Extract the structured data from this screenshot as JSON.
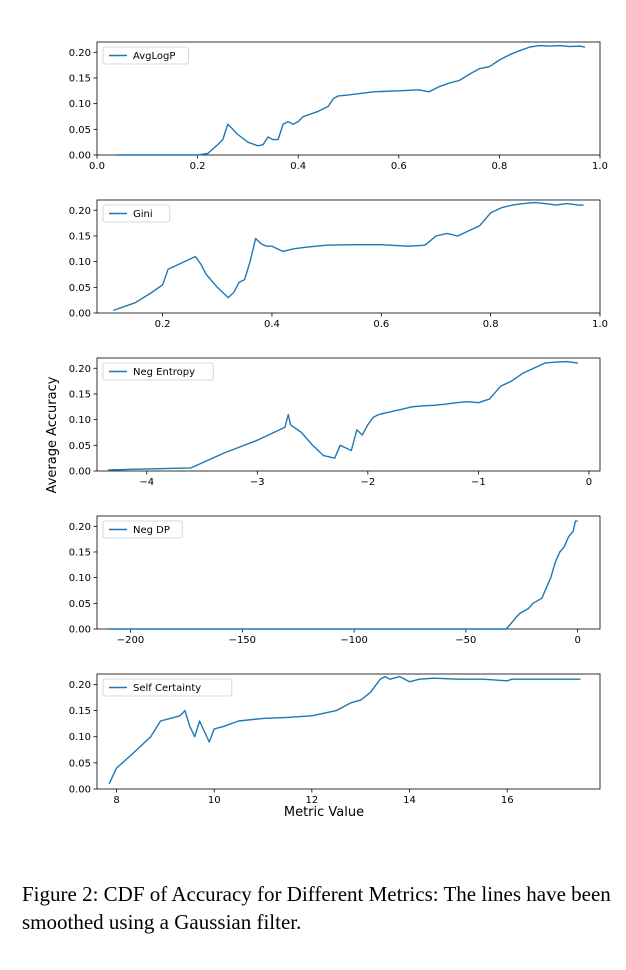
{
  "caption": "Figure 2: CDF of Accuracy for Different Metrics: The lines have been smoothed using a Gaussian filter.",
  "ylabel": "Average Accuracy",
  "xlabel": "Metric Value",
  "line_color": "#1f77b4",
  "chart_data": [
    {
      "type": "line",
      "series": [
        {
          "name": "AvgLogP",
          "x": [
            0.04,
            0.2,
            0.22,
            0.24,
            0.25,
            0.26,
            0.27,
            0.28,
            0.3,
            0.32,
            0.33,
            0.34,
            0.35,
            0.36,
            0.37,
            0.38,
            0.39,
            0.4,
            0.41,
            0.42,
            0.44,
            0.46,
            0.47,
            0.48,
            0.5,
            0.55,
            0.6,
            0.64,
            0.66,
            0.68,
            0.7,
            0.72,
            0.74,
            0.76,
            0.78,
            0.8,
            0.82,
            0.84,
            0.86,
            0.88,
            0.9,
            0.92,
            0.94,
            0.96,
            0.97
          ],
          "y": [
            0.0,
            0.0,
            0.003,
            0.02,
            0.03,
            0.06,
            0.05,
            0.04,
            0.025,
            0.018,
            0.02,
            0.035,
            0.03,
            0.03,
            0.06,
            0.065,
            0.06,
            0.065,
            0.075,
            0.078,
            0.085,
            0.095,
            0.11,
            0.115,
            0.117,
            0.123,
            0.125,
            0.127,
            0.123,
            0.133,
            0.14,
            0.145,
            0.157,
            0.168,
            0.172,
            0.185,
            0.195,
            0.203,
            0.21,
            0.213,
            0.212,
            0.213,
            0.211,
            0.212,
            0.21
          ]
        }
      ],
      "xlim": [
        0.0,
        1.0
      ],
      "ylim": [
        0.0,
        0.22
      ],
      "xticks": [
        0.0,
        0.2,
        0.4,
        0.6,
        0.8,
        1.0
      ],
      "xtick_labels": [
        "0.0",
        "0.2",
        "0.4",
        "0.6",
        "0.8",
        "1.0"
      ],
      "yticks": [
        0.0,
        0.05,
        0.1,
        0.15,
        0.2
      ],
      "ytick_labels": [
        "0.00",
        "0.05",
        "0.10",
        "0.15",
        "0.20"
      ],
      "legend": "top-left"
    },
    {
      "type": "line",
      "series": [
        {
          "name": "Gini",
          "x": [
            0.11,
            0.15,
            0.18,
            0.2,
            0.21,
            0.22,
            0.24,
            0.26,
            0.27,
            0.28,
            0.3,
            0.31,
            0.32,
            0.33,
            0.34,
            0.35,
            0.36,
            0.37,
            0.38,
            0.39,
            0.4,
            0.42,
            0.44,
            0.46,
            0.5,
            0.55,
            0.6,
            0.65,
            0.68,
            0.7,
            0.72,
            0.74,
            0.76,
            0.78,
            0.8,
            0.82,
            0.84,
            0.86,
            0.88,
            0.9,
            0.92,
            0.94,
            0.96,
            0.97
          ],
          "y": [
            0.005,
            0.02,
            0.04,
            0.055,
            0.085,
            0.09,
            0.1,
            0.11,
            0.095,
            0.075,
            0.05,
            0.04,
            0.03,
            0.04,
            0.06,
            0.065,
            0.1,
            0.145,
            0.135,
            0.13,
            0.13,
            0.12,
            0.125,
            0.128,
            0.132,
            0.133,
            0.133,
            0.13,
            0.132,
            0.15,
            0.155,
            0.15,
            0.16,
            0.17,
            0.195,
            0.205,
            0.21,
            0.213,
            0.215,
            0.213,
            0.21,
            0.213,
            0.21,
            0.21
          ]
        }
      ],
      "xlim": [
        0.08,
        1.0
      ],
      "ylim": [
        0.0,
        0.22
      ],
      "xticks": [
        0.2,
        0.4,
        0.6,
        0.8,
        1.0
      ],
      "xtick_labels": [
        "0.2",
        "0.4",
        "0.6",
        "0.8",
        "1.0"
      ],
      "yticks": [
        0.0,
        0.05,
        0.1,
        0.15,
        0.2
      ],
      "ytick_labels": [
        "0.00",
        "0.05",
        "0.10",
        "0.15",
        "0.20"
      ],
      "legend": "top-left"
    },
    {
      "type": "line",
      "series": [
        {
          "name": "Neg Entropy",
          "x": [
            -4.35,
            -4.0,
            -3.6,
            -3.3,
            -3.0,
            -2.8,
            -2.75,
            -2.72,
            -2.7,
            -2.6,
            -2.5,
            -2.4,
            -2.3,
            -2.25,
            -2.2,
            -2.15,
            -2.1,
            -2.05,
            -2.0,
            -1.95,
            -1.9,
            -1.8,
            -1.7,
            -1.6,
            -1.5,
            -1.4,
            -1.3,
            -1.2,
            -1.1,
            -1.0,
            -0.9,
            -0.8,
            -0.7,
            -0.6,
            -0.5,
            -0.4,
            -0.3,
            -0.2,
            -0.1
          ],
          "y": [
            0.002,
            0.004,
            0.006,
            0.035,
            0.06,
            0.08,
            0.085,
            0.11,
            0.09,
            0.075,
            0.05,
            0.03,
            0.025,
            0.05,
            0.045,
            0.04,
            0.08,
            0.07,
            0.09,
            0.105,
            0.11,
            0.115,
            0.12,
            0.125,
            0.127,
            0.128,
            0.13,
            0.133,
            0.135,
            0.133,
            0.14,
            0.165,
            0.175,
            0.19,
            0.2,
            0.21,
            0.212,
            0.213,
            0.21
          ]
        }
      ],
      "xlim": [
        -4.45,
        0.1
      ],
      "ylim": [
        0.0,
        0.22
      ],
      "xticks": [
        -4,
        -3,
        -2,
        -1,
        0
      ],
      "xtick_labels": [
        "−4",
        "−3",
        "−2",
        "−1",
        "0"
      ],
      "yticks": [
        0.0,
        0.05,
        0.1,
        0.15,
        0.2
      ],
      "ytick_labels": [
        "0.00",
        "0.05",
        "0.10",
        "0.15",
        "0.20"
      ],
      "legend": "top-left"
    },
    {
      "type": "line",
      "series": [
        {
          "name": "Neg DP",
          "x": [
            -210,
            -150,
            -100,
            -60,
            -32,
            -30,
            -28,
            -26,
            -24,
            -22,
            -20,
            -18,
            -16,
            -14,
            -12,
            -10,
            -8,
            -6,
            -4,
            -2,
            -1,
            0
          ],
          "y": [
            0.0,
            0.0,
            0.0,
            0.0,
            0.0,
            0.01,
            0.02,
            0.03,
            0.035,
            0.04,
            0.05,
            0.055,
            0.06,
            0.08,
            0.1,
            0.13,
            0.15,
            0.16,
            0.18,
            0.19,
            0.21,
            0.21
          ]
        }
      ],
      "xlim": [
        -215,
        10
      ],
      "ylim": [
        0.0,
        0.22
      ],
      "xticks": [
        -200,
        -150,
        -100,
        -50,
        0
      ],
      "xtick_labels": [
        "−200",
        "−150",
        "−100",
        "−50",
        "0"
      ],
      "yticks": [
        0.0,
        0.05,
        0.1,
        0.15,
        0.2
      ],
      "ytick_labels": [
        "0.00",
        "0.05",
        "0.10",
        "0.15",
        "0.20"
      ],
      "legend": "top-left"
    },
    {
      "type": "line",
      "series": [
        {
          "name": "Self Certainty",
          "x": [
            7.85,
            8.0,
            8.3,
            8.7,
            8.9,
            9.1,
            9.3,
            9.4,
            9.5,
            9.6,
            9.7,
            9.8,
            9.9,
            10.0,
            10.2,
            10.5,
            11.0,
            11.5,
            12.0,
            12.5,
            12.8,
            13.0,
            13.2,
            13.4,
            13.5,
            13.6,
            13.8,
            14.0,
            14.2,
            14.5,
            15.0,
            15.5,
            16.0,
            16.1,
            16.5,
            17.0,
            17.5
          ],
          "y": [
            0.01,
            0.04,
            0.065,
            0.1,
            0.13,
            0.135,
            0.14,
            0.15,
            0.12,
            0.1,
            0.13,
            0.11,
            0.09,
            0.115,
            0.12,
            0.13,
            0.135,
            0.137,
            0.14,
            0.15,
            0.165,
            0.17,
            0.185,
            0.21,
            0.215,
            0.21,
            0.215,
            0.205,
            0.21,
            0.212,
            0.21,
            0.21,
            0.207,
            0.21,
            0.21,
            0.21,
            0.21
          ]
        }
      ],
      "xlim": [
        7.6,
        17.9
      ],
      "ylim": [
        0.0,
        0.22
      ],
      "xticks": [
        8,
        10,
        12,
        14,
        16
      ],
      "xtick_labels": [
        "8",
        "10",
        "12",
        "14",
        "16"
      ],
      "yticks": [
        0.0,
        0.05,
        0.1,
        0.15,
        0.2
      ],
      "ytick_labels": [
        "0.00",
        "0.05",
        "0.10",
        "0.15",
        "0.20"
      ],
      "legend": "top-left"
    }
  ]
}
